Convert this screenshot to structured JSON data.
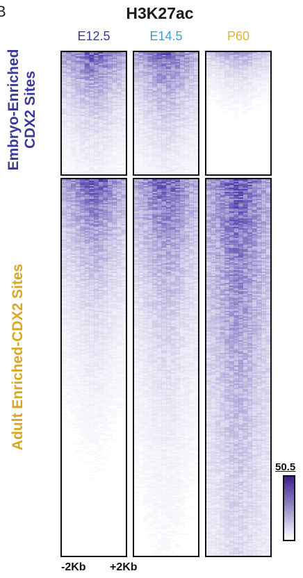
{
  "panel_letter": "B",
  "title": "H3K27ac",
  "columns": [
    {
      "label": "E12.5",
      "color": "#3a3a9c"
    },
    {
      "label": "E14.5",
      "color": "#3f9fd0"
    },
    {
      "label": "P60",
      "color": "#e0b23a"
    }
  ],
  "rows": {
    "embryo": {
      "line1": "Embryo-Enriched",
      "line2": "CDX2 Sites",
      "color": "#3a3a9c"
    },
    "adult": {
      "label": "Adult   Enriched-CDX2 Sites",
      "color": "#d8a824"
    }
  },
  "colorbar": {
    "max_label": "50.5",
    "top_color": "#3a1f8f",
    "bottom_color": "#ffffff"
  },
  "x_axis": {
    "left_label": "-2Kb",
    "right_label": "+2Kb"
  },
  "heatmap_color": "#4a36a8"
}
